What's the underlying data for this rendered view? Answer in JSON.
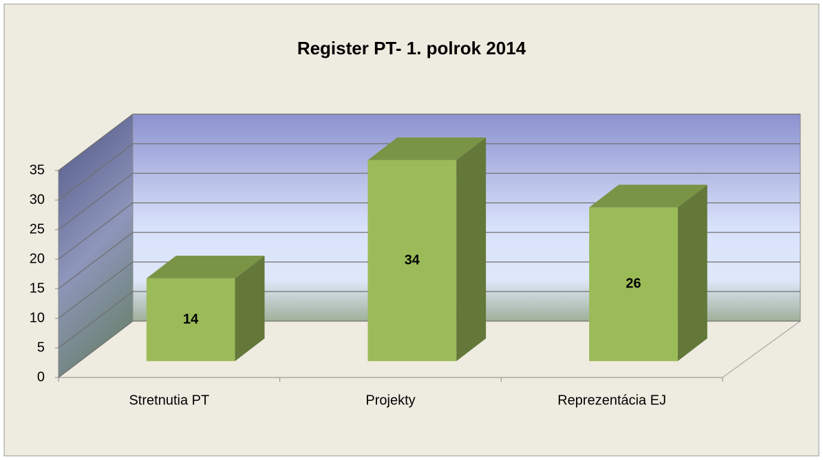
{
  "chart_data": {
    "type": "bar3d",
    "title": "Register PT-  1. polrok 2014",
    "categories": [
      "Stretnutia PT",
      "Projekty",
      "Reprezentácia EJ"
    ],
    "values": [
      14,
      34,
      26
    ],
    "color": "#9bbb59",
    "ylim": [
      0,
      35
    ],
    "yticks": [
      0,
      5,
      10,
      15,
      20,
      25,
      30,
      35
    ],
    "grid": true
  }
}
